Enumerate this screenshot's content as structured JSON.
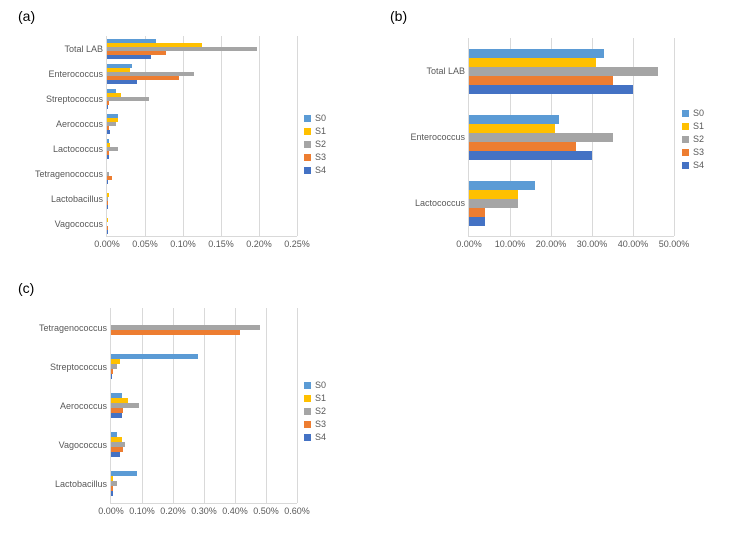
{
  "panels": {
    "a": {
      "label": "(a)"
    },
    "b": {
      "label": "(b)"
    },
    "c": {
      "label": "(c)"
    }
  },
  "colors": {
    "S0": "#5b9bd5",
    "S1": "#ffc000",
    "S2": "#a5a5a5",
    "S3": "#ed7d31",
    "S4": "#4472c4",
    "grid": "#d9d9d9",
    "text": "#595959",
    "bg": "#ffffff"
  },
  "legend_labels": [
    "S0",
    "S1",
    "S2",
    "S3",
    "S4"
  ],
  "chart_a": {
    "type": "bar-horizontal",
    "categories": [
      "Total LAB",
      "Enterococcus",
      "Streptococcus",
      "Aerococcus",
      "Lactococcus",
      "Tetragenococcus",
      "Lactobacillus",
      "Vagococcus"
    ],
    "series": {
      "S0": [
        0.065,
        0.033,
        0.012,
        0.014,
        0.003,
        0.0,
        0.0,
        0.0
      ],
      "S1": [
        0.125,
        0.03,
        0.018,
        0.015,
        0.004,
        0.0,
        0.002,
        0.001
      ],
      "S2": [
        0.198,
        0.115,
        0.055,
        0.012,
        0.015,
        0.002,
        0.001,
        0.0
      ],
      "S3": [
        0.078,
        0.095,
        0.002,
        0.003,
        0.003,
        0.007,
        0.001,
        0.001
      ],
      "S4": [
        0.058,
        0.04,
        0.001,
        0.004,
        0.002,
        0.001,
        0.001,
        0.001
      ]
    },
    "xmax": 0.25,
    "xtick_step": 0.05,
    "xtick_format": "percent2"
  },
  "chart_b": {
    "type": "bar-horizontal",
    "categories": [
      "Total LAB",
      "Enterococcus",
      "Lactococcus"
    ],
    "series": {
      "S0": [
        33.0,
        22.0,
        16.0
      ],
      "S1": [
        31.0,
        21.0,
        12.0
      ],
      "S2": [
        46.0,
        35.0,
        12.0
      ],
      "S3": [
        35.0,
        26.0,
        4.0
      ],
      "S4": [
        40.0,
        30.0,
        4.0
      ]
    },
    "xmax": 50.0,
    "xtick_step": 10.0,
    "xtick_format": "percent1"
  },
  "chart_c": {
    "type": "bar-horizontal",
    "categories": [
      "Tetragenococcus",
      "Streptococcus",
      "Aerococcus",
      "Vagococcus",
      "Lactobacillus"
    ],
    "series": {
      "S0": [
        0.0,
        0.28,
        0.035,
        0.02,
        0.085
      ],
      "S1": [
        0.0,
        0.03,
        0.055,
        0.035,
        0.008
      ],
      "S2": [
        0.48,
        0.02,
        0.09,
        0.045,
        0.02
      ],
      "S3": [
        0.415,
        0.005,
        0.04,
        0.04,
        0.005
      ],
      "S4": [
        0.0,
        0.004,
        0.035,
        0.03,
        0.005
      ]
    },
    "xmax": 0.6,
    "xtick_step": 0.1,
    "xtick_format": "percent2"
  }
}
